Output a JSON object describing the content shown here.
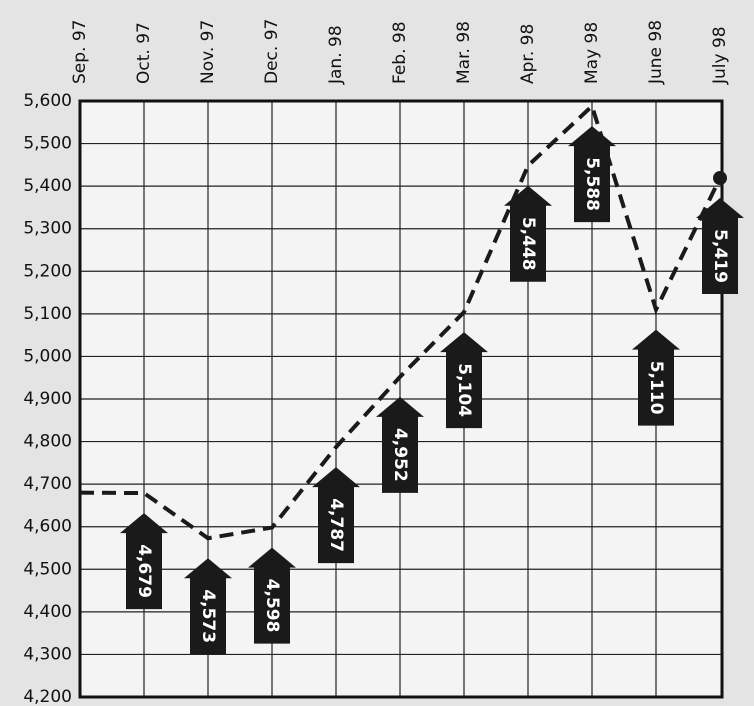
{
  "chart_data": {
    "type": "line",
    "categories": [
      "Sep. 97",
      "Oct. 97",
      "Nov. 97",
      "Dec. 97",
      "Jan. 98",
      "Feb. 98",
      "Mar. 98",
      "Apr. 98",
      "May 98",
      "June 98",
      "July 98"
    ],
    "values": [
      4680,
      4679,
      4573,
      4598,
      4787,
      4952,
      5104,
      5448,
      5588,
      5110,
      5419
    ],
    "value_labels": [
      null,
      "4,679",
      "4,573",
      "4,598",
      "4,787",
      "4,952",
      "5,104",
      "5,448",
      "5,588",
      "5,110",
      "5,419"
    ],
    "color": "#1a1a1a",
    "ylim": [
      4200,
      5600
    ],
    "yticks": [
      {
        "value": 4200,
        "label": "4,200"
      },
      {
        "value": 4300,
        "label": "4,300"
      },
      {
        "value": 4400,
        "label": "4,400"
      },
      {
        "value": 4500,
        "label": "4,500"
      },
      {
        "value": 4600,
        "label": "4,600"
      },
      {
        "value": 4700,
        "label": "4,700"
      },
      {
        "value": 4800,
        "label": "4,800"
      },
      {
        "value": 4900,
        "label": "4,900"
      },
      {
        "value": 5000,
        "label": "5,000"
      },
      {
        "value": 5100,
        "label": "5,100"
      },
      {
        "value": 5200,
        "label": "5,200"
      },
      {
        "value": 5300,
        "label": "5,300"
      },
      {
        "value": 5400,
        "label": "5,400"
      },
      {
        "value": 5500,
        "label": "5,500"
      },
      {
        "value": 5600,
        "label": "5,600"
      }
    ],
    "grid": true
  }
}
